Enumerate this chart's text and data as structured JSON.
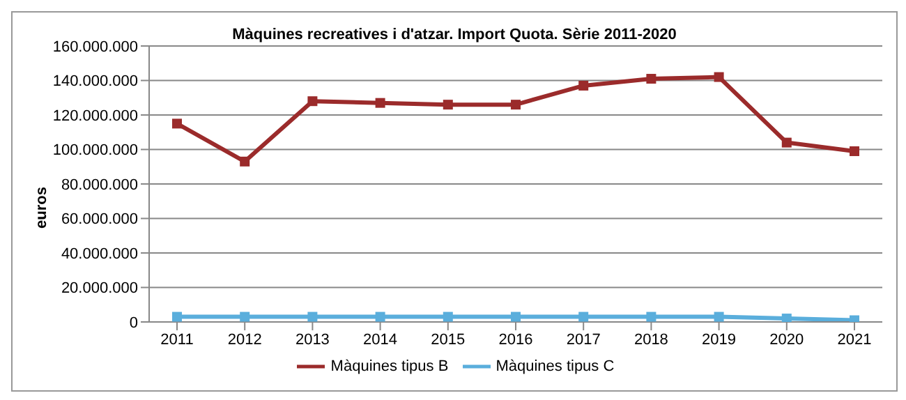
{
  "chart_data": {
    "type": "line",
    "title": "Màquines recreatives i d'atzar. Import Quota. Sèrie 2011-2020",
    "ylabel": "euros",
    "categories": [
      "2011",
      "2012",
      "2013",
      "2014",
      "2015",
      "2016",
      "2017",
      "2018",
      "2019",
      "2020",
      "2021"
    ],
    "series": [
      {
        "name": "Màquines tipus B",
        "color": "#9b2b2b",
        "values": [
          115000000,
          93000000,
          128000000,
          127000000,
          126000000,
          126000000,
          137000000,
          141000000,
          142000000,
          104000000,
          99000000
        ]
      },
      {
        "name": "Màquines tipus C",
        "color": "#5aaedc",
        "values": [
          3000000,
          3000000,
          3000000,
          3000000,
          3000000,
          3000000,
          3000000,
          3000000,
          3000000,
          2000000,
          1000000
        ]
      }
    ],
    "ylim": [
      0,
      160000000
    ],
    "yticks": [
      0,
      {
        "value": 20000000,
        "label": "20.000.000"
      },
      {
        "value": 40000000,
        "label": "40.000.000"
      },
      {
        "value": 60000000,
        "label": "60.000.000"
      },
      {
        "value": 80000000,
        "label": "80.000.000"
      },
      {
        "value": 100000000,
        "label": "100.000.000"
      },
      {
        "value": 120000000,
        "label": "120.000.000"
      },
      {
        "value": 140000000,
        "label": "140.000.000"
      },
      {
        "value": 160000000,
        "label": "160.000.000"
      }
    ],
    "grid": "y",
    "legend": "bottom",
    "marker": "square",
    "line_style": "solid"
  }
}
